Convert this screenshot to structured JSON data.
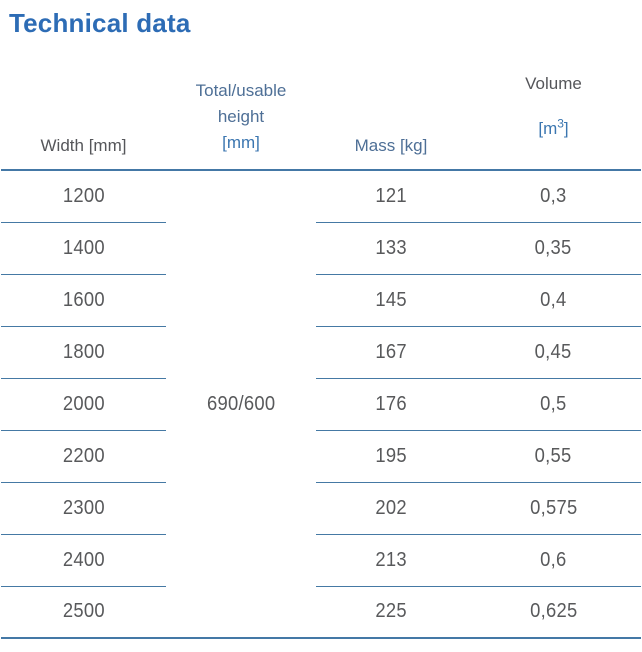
{
  "page": {
    "title": "Technical data"
  },
  "colors": {
    "title_blue": "#2d6cb5",
    "header_gray": "#55565a",
    "header_slate_blue": "#4e6f96",
    "unit_blue": "#3b76b0",
    "rule_blue": "#4579a4",
    "data_gray": "#58595b"
  },
  "table": {
    "headers": {
      "width": "Width [mm]",
      "height_line1": "Total/usable",
      "height_line2": "height",
      "height_unit": "[mm]",
      "mass": "Mass [kg]",
      "volume": "Volume",
      "volume_unit_open": "[m",
      "volume_unit_sup": "3",
      "volume_unit_close": "]"
    },
    "merged_height_value": "690/600",
    "rows": [
      {
        "width": "1200",
        "mass": "121",
        "volume": "0,3"
      },
      {
        "width": "1400",
        "mass": "133",
        "volume": "0,35"
      },
      {
        "width": "1600",
        "mass": "145",
        "volume": "0,4"
      },
      {
        "width": "1800",
        "mass": "167",
        "volume": "0,45"
      },
      {
        "width": "2000",
        "mass": "176",
        "volume": "0,5"
      },
      {
        "width": "2200",
        "mass": "195",
        "volume": "0,55"
      },
      {
        "width": "2300",
        "mass": "202",
        "volume": "0,575"
      },
      {
        "width": "2400",
        "mass": "213",
        "volume": "0,6"
      },
      {
        "width": "2500",
        "mass": "225",
        "volume": "0,625"
      }
    ]
  },
  "chart_data": {
    "type": "table",
    "columns": [
      "Width [mm]",
      "Total/usable height [mm]",
      "Mass [kg]",
      "Volume [m3]"
    ],
    "rows": [
      [
        "1200",
        "690/600",
        "121",
        "0,3"
      ],
      [
        "1400",
        "690/600",
        "133",
        "0,35"
      ],
      [
        "1600",
        "690/600",
        "145",
        "0,4"
      ],
      [
        "1800",
        "690/600",
        "167",
        "0,45"
      ],
      [
        "2000",
        "690/600",
        "176",
        "0,5"
      ],
      [
        "2200",
        "690/600",
        "195",
        "0,55"
      ],
      [
        "2300",
        "690/600",
        "202",
        "0,575"
      ],
      [
        "2400",
        "690/600",
        "213",
        "0,6"
      ],
      [
        "2500",
        "690/600",
        "225",
        "0,625"
      ]
    ]
  }
}
